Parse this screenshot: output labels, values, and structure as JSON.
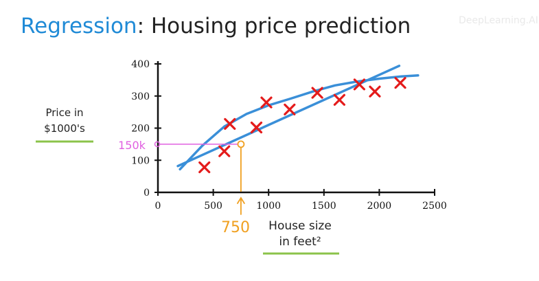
{
  "title": {
    "keyword": "Regression",
    "rest": ": Housing price prediction"
  },
  "watermark": "DeepLearning.AI",
  "colors": {
    "title_accent": "#1f8ad6",
    "data_point": "#e41b1b",
    "fit_line": "#3a8fd8",
    "label_underline": "#8bc34a",
    "annotation_x": "#f0a020",
    "annotation_y": "#e060e0"
  },
  "chart_data": {
    "type": "scatter",
    "xlabel": [
      "House size",
      "in feet²"
    ],
    "ylabel": [
      "Price in",
      "$1000's"
    ],
    "xlim": [
      0,
      2500
    ],
    "ylim": [
      0,
      400
    ],
    "x_ticks": [
      0,
      500,
      1000,
      1500,
      2000,
      2500
    ],
    "y_ticks": [
      0,
      100,
      200,
      300,
      400
    ],
    "grid": false,
    "points": {
      "x": [
        420,
        600,
        650,
        890,
        980,
        1190,
        1440,
        1640,
        1820,
        1960,
        2190
      ],
      "y": [
        78,
        128,
        213,
        202,
        280,
        258,
        310,
        288,
        336,
        314,
        341
      ]
    },
    "fit_line": {
      "x": [
        180,
        2180
      ],
      "y": [
        82,
        394
      ]
    },
    "fit_curve": {
      "x": [
        200,
        400,
        600,
        800,
        1000,
        1200,
        1400,
        1600,
        1800,
        2000,
        2200,
        2350
      ],
      "y": [
        72,
        145,
        205,
        244,
        271,
        292,
        314,
        333,
        345,
        354,
        361,
        364
      ]
    },
    "annotations": {
      "x_marker": "750",
      "y_marker": "150k"
    }
  }
}
